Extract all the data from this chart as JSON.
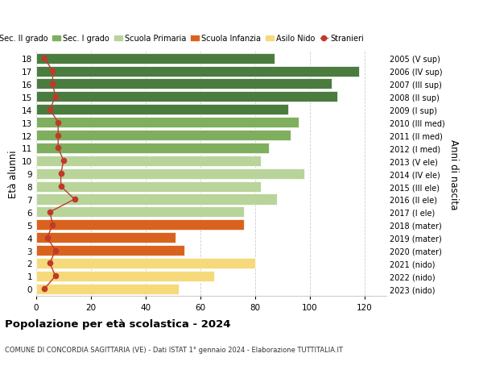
{
  "ages": [
    18,
    17,
    16,
    15,
    14,
    13,
    12,
    11,
    10,
    9,
    8,
    7,
    6,
    5,
    4,
    3,
    2,
    1,
    0
  ],
  "years": [
    "2005 (V sup)",
    "2006 (IV sup)",
    "2007 (III sup)",
    "2008 (II sup)",
    "2009 (I sup)",
    "2010 (III med)",
    "2011 (II med)",
    "2012 (I med)",
    "2013 (V ele)",
    "2014 (IV ele)",
    "2015 (III ele)",
    "2016 (II ele)",
    "2017 (I ele)",
    "2018 (mater)",
    "2019 (mater)",
    "2020 (mater)",
    "2021 (nido)",
    "2022 (nido)",
    "2023 (nido)"
  ],
  "values": [
    87,
    118,
    108,
    110,
    92,
    96,
    93,
    85,
    82,
    98,
    82,
    88,
    76,
    76,
    51,
    54,
    80,
    65,
    52
  ],
  "stranieri": [
    3,
    6,
    6,
    7,
    5,
    8,
    8,
    8,
    10,
    9,
    9,
    14,
    5,
    6,
    4,
    7,
    5,
    7,
    3
  ],
  "bar_colors": [
    "#4a7c3f",
    "#4a7c3f",
    "#4a7c3f",
    "#4a7c3f",
    "#4a7c3f",
    "#7faf5e",
    "#7faf5e",
    "#7faf5e",
    "#b8d49a",
    "#b8d49a",
    "#b8d49a",
    "#b8d49a",
    "#b8d49a",
    "#d9631e",
    "#d9631e",
    "#d9631e",
    "#f5d97a",
    "#f5d97a",
    "#f5d97a"
  ],
  "legend_labels": [
    "Sec. II grado",
    "Sec. I grado",
    "Scuola Primaria",
    "Scuola Infanzia",
    "Asilo Nido",
    "Stranieri"
  ],
  "legend_colors": [
    "#4a7c3f",
    "#7faf5e",
    "#b8d49a",
    "#d9631e",
    "#f5d97a",
    "#c0392b"
  ],
  "stranieri_color": "#c0392b",
  "title": "Popolazione per età scolastica - 2024",
  "subtitle": "COMUNE DI CONCORDIA SAGITTARIA (VE) - Dati ISTAT 1° gennaio 2024 - Elaborazione TUTTITALIA.IT",
  "ylabel_left": "Età alunni",
  "ylabel_right": "Anni di nascita",
  "xlim": [
    0,
    128
  ],
  "xticks": [
    0,
    20,
    40,
    60,
    80,
    100,
    120
  ],
  "bg_color": "#ffffff",
  "grid_color": "#cccccc",
  "bar_height": 0.82
}
